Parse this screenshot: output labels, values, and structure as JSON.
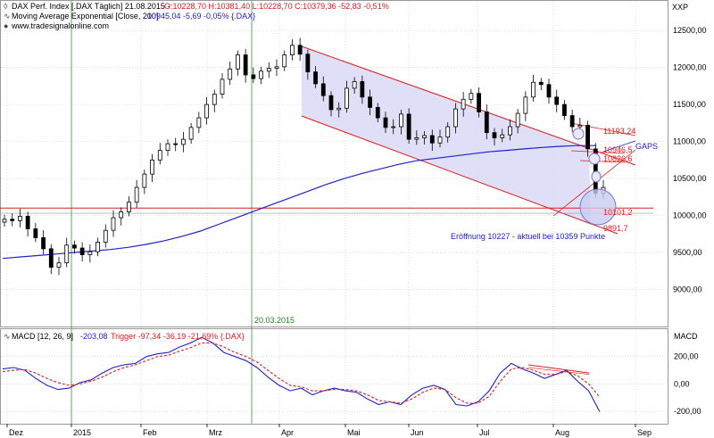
{
  "colors": {
    "background": "#ffffff",
    "grid": "#c8c8c8",
    "candle": "#000000",
    "ema": "#2020cc",
    "channel_fill": "#d9dbf6",
    "channel_line": "#e01b1b",
    "annotation_red": "#e01b1b",
    "annotation_blue": "#2020cc",
    "macd_line": "#2020cc",
    "trigger_line": "#e01b1b",
    "vline": "#3a9a3a"
  },
  "header": {
    "line1_prefix": "DAX Perf. Index [.DAX  Täglich] 21.08.2015 -",
    "line1_ohlc": "O:10228,70 H:10381,40 L:10228,70 C:10379,36 -52,83 -0,51%",
    "line2_prefix": "Moving Average Exponential [Close, 200]",
    "line2_values": "10945,04 -5,69 -0,05% {.DAX}",
    "line3": "www.tradesignalonline.com",
    "corner_label": "XXP"
  },
  "macd_header": {
    "prefix": "MACD [12, 26, 9]",
    "value": "-203,08",
    "trigger": "Trigger -97,34 -36,19 -21,69% {.DAX}",
    "axis_label": "MACD"
  },
  "annotations": {
    "vline_date": "20.03.2015",
    "gaps": "GAPS",
    "level_11193": "11193,24",
    "level_10946": "10946,5",
    "level_10826": "10826,6",
    "level_10101": "10101,2",
    "level_9891": "9891,7",
    "open_note": "Eröffnung 10227 - aktuell  bei 10359 Punkte"
  },
  "chart_data": [
    {
      "type": "line",
      "title": "DAX Perf. Index [.DAX  Täglich] 21.08.2015",
      "x_tick_labels": [
        "Dez",
        "2015",
        "Feb",
        "Mrz",
        "Apr",
        "Mai",
        "Jun",
        "Jul",
        "Aug",
        "Sep"
      ],
      "y_tick_labels": [
        "12500,00",
        "12000,00",
        "11500,00",
        "11000,00",
        "10500,00",
        "10000,00",
        "9500,00",
        "9000,00"
      ],
      "ylim": [
        8500,
        12900
      ],
      "grid": true,
      "series": [
        {
          "name": "DAX",
          "values": [
            9950,
            9930,
            9990,
            9820,
            9700,
            9550,
            9300,
            9360,
            9600,
            9560,
            9470,
            9510,
            9640,
            9800,
            9970,
            10050,
            10180,
            10380,
            10560,
            10750,
            10880,
            10970,
            10960,
            11030,
            11190,
            11320,
            11500,
            11640,
            11840,
            11980,
            12170,
            11900,
            11850,
            11950,
            11990,
            12010,
            12170,
            12300,
            12180,
            11940,
            11780,
            11620,
            11430,
            11450,
            11720,
            11810,
            11600,
            11460,
            11320,
            11190,
            11200,
            11370,
            11030,
            11050,
            11080,
            10980,
            11060,
            11200,
            11440,
            11570,
            11650,
            11400,
            11120,
            11050,
            11090,
            11200,
            11380,
            11600,
            11800,
            11770,
            11600,
            11500,
            11350,
            11200,
            11220,
            10900,
            10300,
            10379
          ]
        },
        {
          "name": "Moving Average Exponential [Close, 200]",
          "values": [
            9420,
            9440,
            9460,
            9480,
            9500,
            9520,
            9540,
            9570,
            9610,
            9660,
            9720,
            9790,
            9880,
            9970,
            10060,
            10150,
            10240,
            10330,
            10420,
            10500,
            10570,
            10630,
            10690,
            10740,
            10770,
            10800,
            10830,
            10860,
            10880,
            10900,
            10920,
            10935,
            10945,
            10945
          ]
        }
      ]
    },
    {
      "type": "line",
      "title": "MACD [12, 26, 9]",
      "y_tick_labels": [
        "200,00",
        "0,00",
        "-200,00"
      ],
      "ylim": [
        -290,
        400
      ],
      "grid": true,
      "series": [
        {
          "name": "MACD",
          "values": [
            110,
            120,
            100,
            40,
            -10,
            -40,
            -30,
            10,
            30,
            80,
            120,
            140,
            150,
            200,
            220,
            230,
            270,
            300,
            340,
            300,
            230,
            200,
            170,
            120,
            50,
            -10,
            -50,
            -30,
            -80,
            -50,
            -30,
            -50,
            -60,
            -110,
            -150,
            -130,
            -150,
            -80,
            -30,
            -10,
            -40,
            -150,
            -160,
            -130,
            -50,
            80,
            150,
            110,
            80,
            40,
            70,
            100,
            20,
            -50,
            -203
          ]
        },
        {
          "name": "Trigger",
          "values": [
            90,
            100,
            105,
            80,
            40,
            10,
            -10,
            0,
            20,
            50,
            90,
            120,
            140,
            170,
            200,
            210,
            240,
            265,
            300,
            300,
            270,
            230,
            200,
            160,
            100,
            40,
            -10,
            -20,
            -50,
            -50,
            -40,
            -40,
            -50,
            -80,
            -120,
            -130,
            -140,
            -110,
            -60,
            -30,
            -40,
            -100,
            -140,
            -140,
            -90,
            20,
            110,
            120,
            100,
            70,
            70,
            90,
            60,
            0,
            -97
          ]
        }
      ]
    }
  ]
}
